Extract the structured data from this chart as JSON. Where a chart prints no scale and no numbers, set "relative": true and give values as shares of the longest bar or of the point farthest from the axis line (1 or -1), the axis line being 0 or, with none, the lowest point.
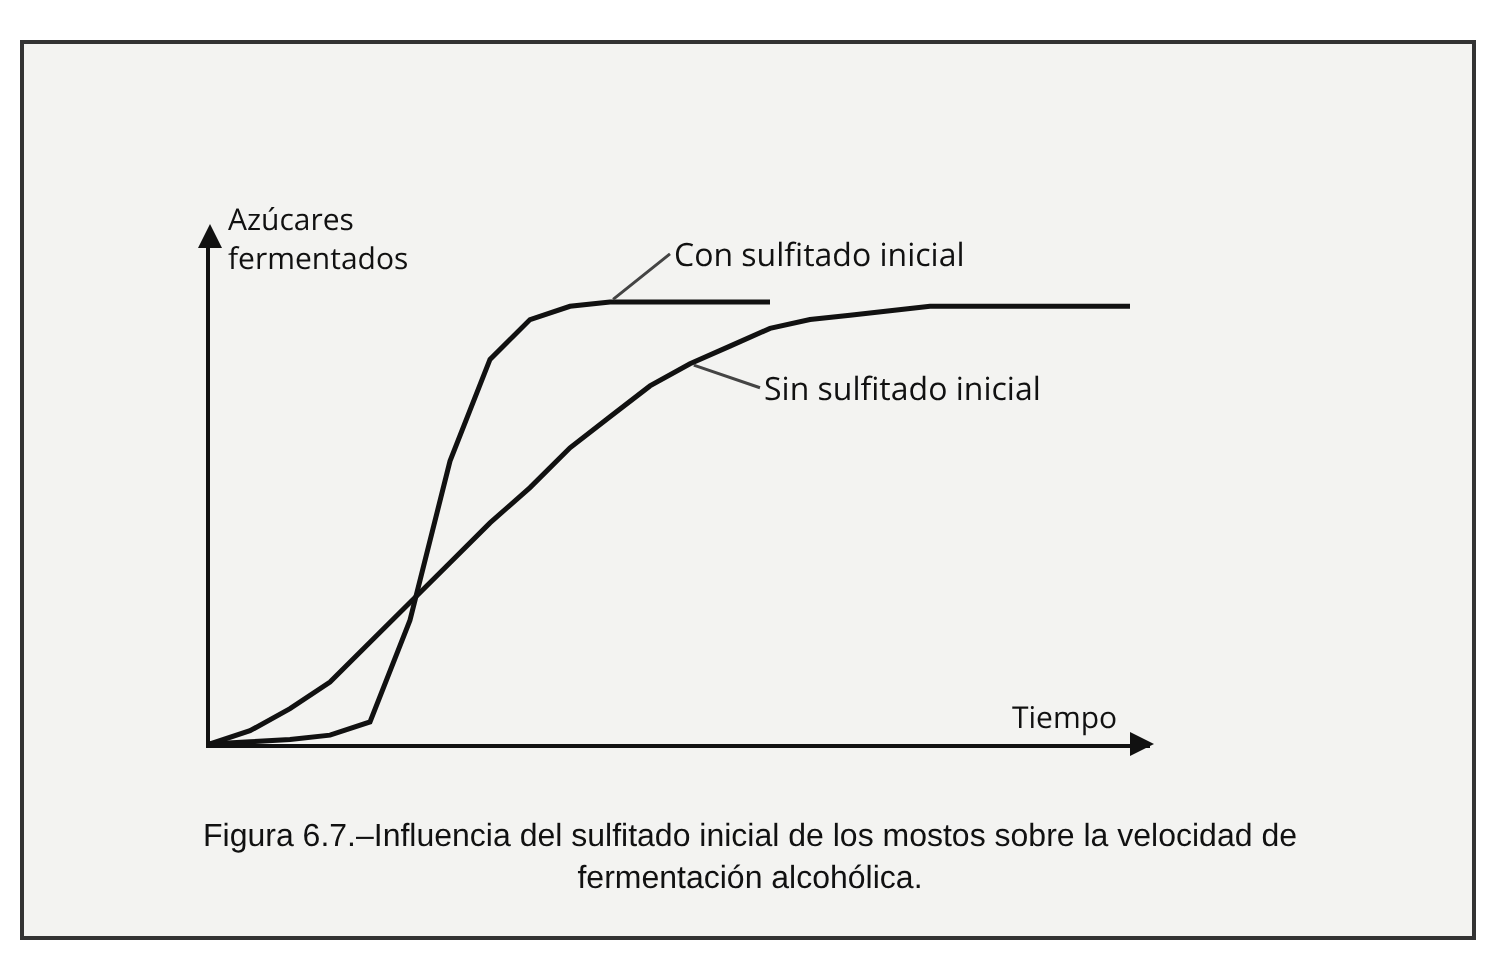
{
  "chart_data": {
    "type": "line",
    "relative": true,
    "ylabel": "Azúcares fermentados",
    "xlabel": "Tiempo",
    "categories": [
      null,
      null,
      null,
      null,
      null,
      null,
      null,
      null,
      null,
      null,
      null,
      null,
      null,
      null,
      null,
      null,
      null,
      null,
      null,
      null,
      null,
      null,
      null,
      null
    ],
    "series": [
      {
        "name": "Con sulfitado inicial",
        "color": "#111111",
        "values": [
          0,
          0.005,
          0.01,
          0.02,
          0.05,
          0.28,
          0.64,
          0.87,
          0.96,
          0.99,
          1,
          1,
          1,
          1,
          1,
          null,
          null,
          null,
          null,
          null,
          null,
          null,
          null,
          null
        ]
      },
      {
        "name": "Sin sulfitado inicial",
        "color": "#111111",
        "values": [
          0,
          0.03,
          0.08,
          0.14,
          0.23,
          0.32,
          0.41,
          0.5,
          0.58,
          0.67,
          0.74,
          0.81,
          0.86,
          0.9,
          0.94,
          0.96,
          0.97,
          0.98,
          0.99,
          0.99,
          0.99,
          0.99,
          0.99,
          0.99
        ]
      }
    ],
    "annotations": [
      "Figura 6.7.–Influencia del sulfitado inicial de los mostos sobre la velocidad de fermentación alcohólica."
    ],
    "legend": false,
    "marker": "none",
    "line_style": "solid"
  }
}
